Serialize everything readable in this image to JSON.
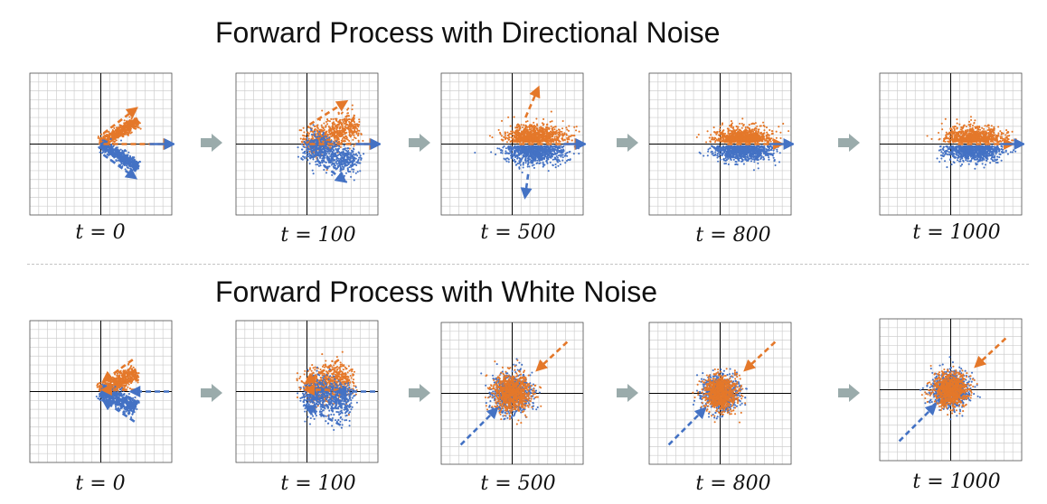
{
  "title_directional": "Forward Process with Directional Noise",
  "title_white": "Forward Process with White Noise",
  "colors": {
    "orange": "#e4782a",
    "blue": "#4472c4",
    "grid": "#cfcfcf",
    "axis": "#000000",
    "step_arrow": "#9aabab"
  },
  "icons": {
    "step": "step-arrow-icon"
  },
  "rows": [
    {
      "name": "directional",
      "panels": [
        {
          "label": "t = 0"
        },
        {
          "label": "t = 100"
        },
        {
          "label": "t = 500"
        },
        {
          "label": "t = 800"
        },
        {
          "label": "t = 1000"
        }
      ]
    },
    {
      "name": "white",
      "panels": [
        {
          "label": "t = 0"
        },
        {
          "label": "t = 100"
        },
        {
          "label": "t = 500"
        },
        {
          "label": "t = 800"
        },
        {
          "label": "t = 1000"
        }
      ]
    }
  ]
}
